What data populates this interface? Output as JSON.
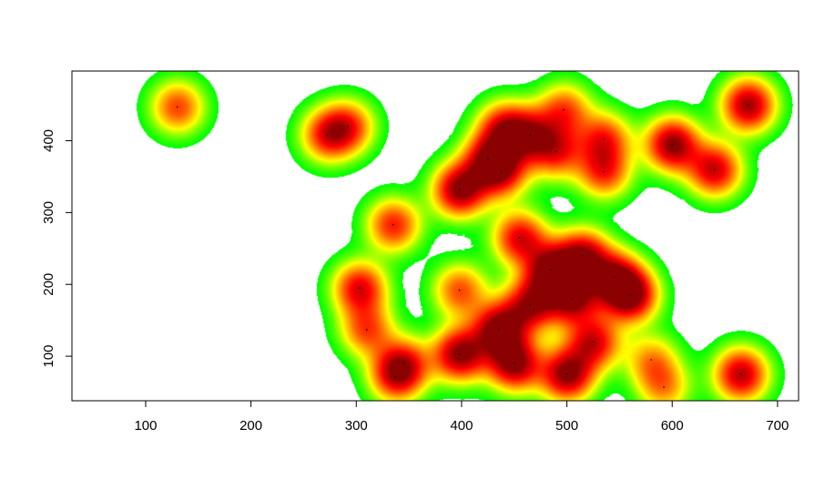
{
  "chart_data": {
    "type": "heatmap",
    "title": "",
    "xlabel": "",
    "ylabel": "",
    "xlim": [
      30,
      720
    ],
    "ylim": [
      497,
      38
    ],
    "y_reversed": true,
    "x_ticks": [
      100,
      200,
      300,
      400,
      500,
      600,
      700
    ],
    "y_ticks": [
      100,
      200,
      300,
      400
    ],
    "grid": false,
    "legend": "none",
    "colormap": [
      "#ffffff",
      "#00ff00",
      "#ffff00",
      "#ff6600",
      "#ff0000",
      "#8b0000"
    ],
    "points": [
      {
        "x": 130,
        "y": 447,
        "v": 0.62
      },
      {
        "x": 272,
        "y": 408,
        "v": 0.65
      },
      {
        "x": 292,
        "y": 420,
        "v": 0.6
      },
      {
        "x": 303,
        "y": 195,
        "v": 0.8
      },
      {
        "x": 310,
        "y": 137,
        "v": 0.6
      },
      {
        "x": 335,
        "y": 283,
        "v": 0.7
      },
      {
        "x": 337,
        "y": 72,
        "v": 0.62
      },
      {
        "x": 345,
        "y": 90,
        "v": 0.6
      },
      {
        "x": 398,
        "y": 103,
        "v": 1.0
      },
      {
        "x": 398,
        "y": 192,
        "v": 0.6
      },
      {
        "x": 398,
        "y": 332,
        "v": 1.0
      },
      {
        "x": 425,
        "y": 375,
        "v": 0.7
      },
      {
        "x": 435,
        "y": 138,
        "v": 1.0
      },
      {
        "x": 438,
        "y": 357,
        "v": 0.7
      },
      {
        "x": 440,
        "y": 418,
        "v": 0.75
      },
      {
        "x": 450,
        "y": 90,
        "v": 1.0
      },
      {
        "x": 455,
        "y": 265,
        "v": 0.8
      },
      {
        "x": 465,
        "y": 172,
        "v": 0.85
      },
      {
        "x": 465,
        "y": 408,
        "v": 0.7
      },
      {
        "x": 485,
        "y": 220,
        "v": 1.0
      },
      {
        "x": 490,
        "y": 385,
        "v": 0.65
      },
      {
        "x": 497,
        "y": 443,
        "v": 0.6
      },
      {
        "x": 500,
        "y": 75,
        "v": 1.0
      },
      {
        "x": 505,
        "y": 180,
        "v": 0.9
      },
      {
        "x": 515,
        "y": 240,
        "v": 0.9
      },
      {
        "x": 525,
        "y": 120,
        "v": 0.8
      },
      {
        "x": 535,
        "y": 357,
        "v": 0.65
      },
      {
        "x": 535,
        "y": 403,
        "v": 0.65
      },
      {
        "x": 545,
        "y": 210,
        "v": 0.8
      },
      {
        "x": 560,
        "y": 185,
        "v": 1.0
      },
      {
        "x": 580,
        "y": 95,
        "v": 0.45
      },
      {
        "x": 592,
        "y": 57,
        "v": 0.45
      },
      {
        "x": 600,
        "y": 395,
        "v": 1.0
      },
      {
        "x": 640,
        "y": 360,
        "v": 0.85
      },
      {
        "x": 665,
        "y": 75,
        "v": 0.9
      },
      {
        "x": 672,
        "y": 450,
        "v": 0.95
      }
    ]
  }
}
